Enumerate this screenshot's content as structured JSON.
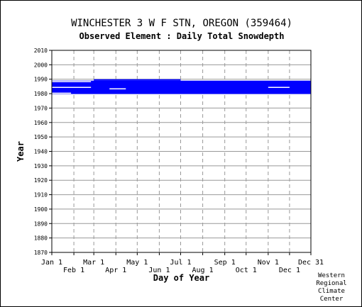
{
  "title": "WINCHESTER 3 W F STN, OREGON   (359464)",
  "subtitle": "Observed Element : Daily Total Snowdepth",
  "credit": [
    "Western",
    "Regional",
    "Climate",
    "Center"
  ],
  "chart_data": {
    "type": "heatmap",
    "xlabel": "Day of Year",
    "ylabel": "Year",
    "xlim": [
      1,
      365
    ],
    "ylim": [
      1870,
      2010
    ],
    "x_ticks": [
      {
        "label": "Jan 1",
        "day": 1,
        "row": 0
      },
      {
        "label": "Feb 1",
        "day": 32,
        "row": 1
      },
      {
        "label": "Mar 1",
        "day": 60,
        "row": 0
      },
      {
        "label": "Apr 1",
        "day": 91,
        "row": 1
      },
      {
        "label": "May 1",
        "day": 121,
        "row": 0
      },
      {
        "label": "Jun 1",
        "day": 152,
        "row": 1
      },
      {
        "label": "Jul 1",
        "day": 182,
        "row": 0
      },
      {
        "label": "Aug 1",
        "day": 213,
        "row": 1
      },
      {
        "label": "Sep 1",
        "day": 244,
        "row": 0
      },
      {
        "label": "Oct 1",
        "day": 274,
        "row": 1
      },
      {
        "label": "Nov 1",
        "day": 305,
        "row": 0
      },
      {
        "label": "Dec 1",
        "day": 335,
        "row": 1
      },
      {
        "label": "Dec 31",
        "day": 365,
        "row": 0
      }
    ],
    "y_ticks": [
      1870,
      1880,
      1890,
      1900,
      1910,
      1920,
      1930,
      1940,
      1950,
      1960,
      1970,
      1980,
      1990,
      2000,
      2010
    ],
    "grid": true,
    "colors": {
      "data": "#0000ff",
      "gap": "#ffffff",
      "grid": "#999999",
      "axis": "#000000"
    },
    "data_years": [
      {
        "year": 1980,
        "gaps": [
          [
            1,
            28
          ]
        ]
      },
      {
        "year": 1981,
        "gaps": []
      },
      {
        "year": 1982,
        "gaps": []
      },
      {
        "year": 1983,
        "gaps": [
          [
            82,
            105
          ]
        ]
      },
      {
        "year": 1984,
        "gaps": [
          [
            1,
            56
          ],
          [
            305,
            335
          ]
        ]
      },
      {
        "year": 1985,
        "gaps": []
      },
      {
        "year": 1986,
        "gaps": []
      },
      {
        "year": 1987,
        "gaps": []
      },
      {
        "year": 1988,
        "gaps": [
          [
            1,
            56
          ]
        ]
      }
    ],
    "partial_line": {
      "year": 1989,
      "start_day": 60,
      "end_day": 182
    }
  }
}
